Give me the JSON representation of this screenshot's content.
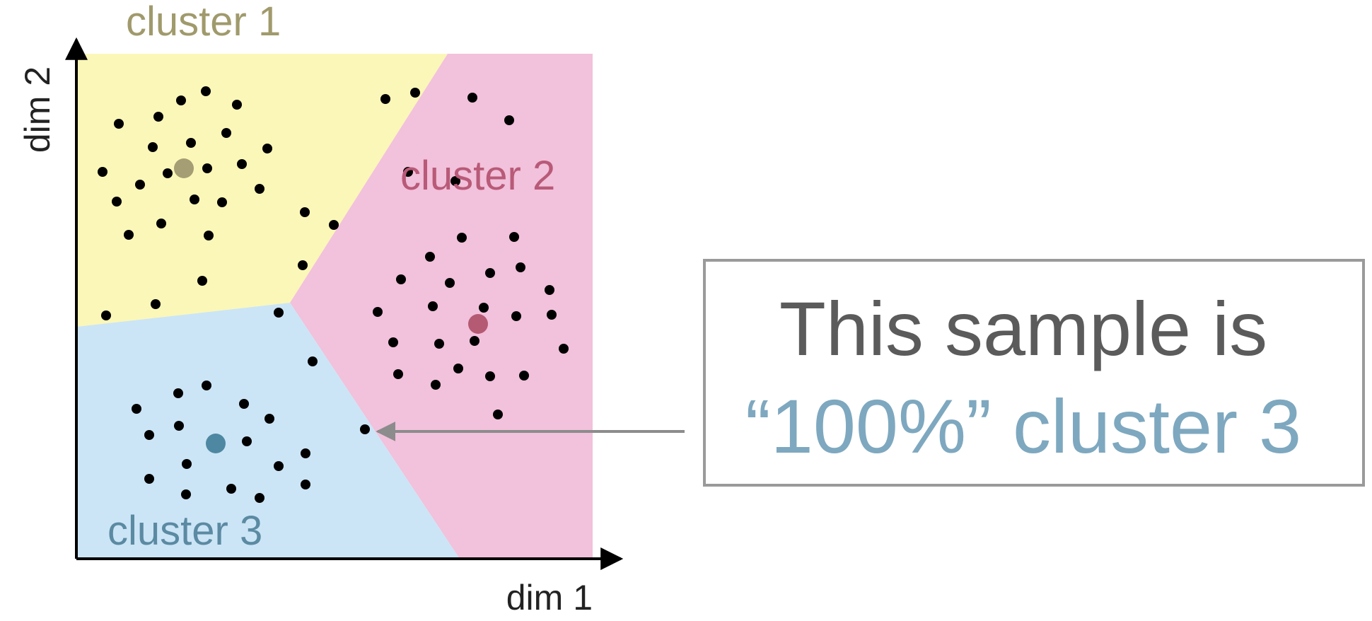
{
  "axes": {
    "x_label": "dim 1",
    "y_label": "dim 2"
  },
  "clusters": [
    {
      "id": "cluster-1",
      "label": "cluster 1",
      "region_color": "#fbf7b8",
      "label_color": "#a09a6c",
      "centroid_color": "#a59d73"
    },
    {
      "id": "cluster-2",
      "label": "cluster 2",
      "region_color": "#f2c1db",
      "label_color": "#b85a78",
      "centroid_color": "#b55a73"
    },
    {
      "id": "cluster-3",
      "label": "cluster 3",
      "region_color": "#cbe5f6",
      "label_color": "#5b8aa2",
      "centroid_color": "#4e87a2"
    }
  ],
  "callout": {
    "line1": "This sample is",
    "line2": "“100%” cluster 3",
    "line1_color": "#5b5b5b",
    "line2_color": "#7ea8bf",
    "border_color": "#9a9a9a",
    "arrow_color": "#8c8c8c"
  },
  "colors": {
    "point": "#000000",
    "axis": "#000000",
    "axis_label": "#222222"
  }
}
